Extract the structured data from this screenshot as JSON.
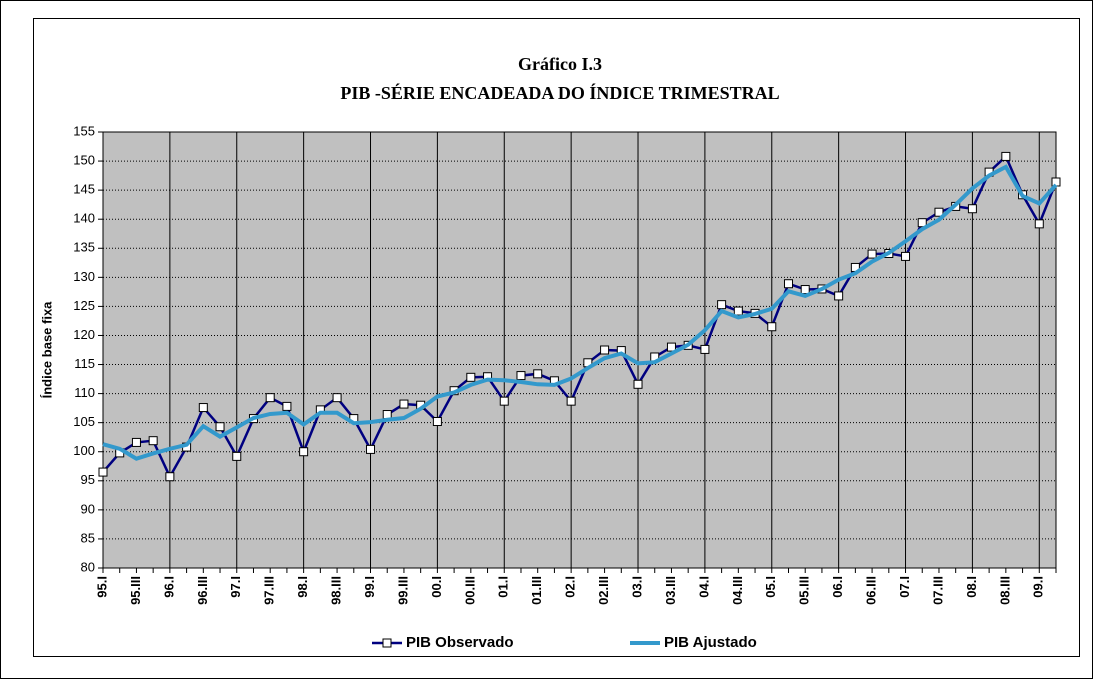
{
  "chart_data": {
    "type": "line",
    "title": "Gráfico I.3",
    "subtitle": "PIB -SÉRIE ENCADEADA DO ÍNDICE TRIMESTRAL",
    "y_label": "Índice base fixa",
    "categories": [
      "95.I",
      null,
      "95.III",
      null,
      "96.I",
      null,
      "96.III",
      null,
      "97.I",
      null,
      "97.III",
      null,
      "98.I",
      null,
      "98.III",
      null,
      "99.I",
      null,
      "99.III",
      null,
      "00.I",
      null,
      "00.III",
      null,
      "01.I",
      null,
      "01.III",
      null,
      "02.I",
      null,
      "02.III",
      null,
      "03.I",
      null,
      "03.III",
      null,
      "04.I",
      null,
      "04.III",
      null,
      "05.I",
      null,
      "05.III",
      null,
      "06.I",
      null,
      "06.III",
      null,
      "07.I",
      null,
      "07.III",
      null,
      "08.I",
      null,
      "08.III",
      null,
      "09.I",
      null
    ],
    "series": [
      {
        "name": "PIB Observado",
        "color": "#000080",
        "marker": "square",
        "values": [
          96.5,
          99.8,
          101.6,
          101.9,
          95.7,
          100.8,
          107.6,
          104.3,
          99.2,
          105.7,
          109.3,
          107.8,
          100.0,
          107.2,
          109.3,
          105.7,
          100.4,
          106.4,
          108.2,
          108.0,
          105.2,
          110.5,
          112.8,
          112.9,
          108.7,
          113.1,
          113.4,
          112.2,
          108.7,
          115.3,
          117.5,
          117.4,
          111.6,
          116.3,
          118.0,
          118.3,
          117.6,
          125.3,
          124.2,
          123.8,
          121.5,
          128.9,
          127.9,
          128.0,
          126.8,
          131.7,
          134.0,
          134.1,
          133.6,
          139.4,
          141.2,
          142.2,
          141.8,
          148.1,
          150.8,
          144.2,
          139.2,
          146.4
        ]
      },
      {
        "name": "PIB Ajustado",
        "color": "#3399cc",
        "marker": "none",
        "values": [
          101.3,
          100.5,
          98.8,
          99.7,
          100.5,
          101.2,
          104.4,
          102.6,
          104.2,
          105.8,
          106.5,
          106.7,
          104.7,
          106.7,
          106.7,
          104.9,
          105.1,
          105.5,
          105.8,
          107.4,
          109.5,
          110.2,
          111.5,
          112.4,
          112.3,
          112.0,
          111.6,
          111.5,
          112.6,
          114.4,
          116.1,
          116.9,
          115.2,
          115.4,
          116.9,
          118.4,
          120.9,
          124.2,
          123.1,
          123.7,
          124.6,
          127.6,
          126.8,
          128.0,
          129.6,
          130.7,
          132.7,
          134.2,
          136.2,
          138.3,
          139.9,
          142.5,
          145.3,
          147.5,
          149.0,
          144.0,
          142.7,
          145.9
        ]
      }
    ],
    "ylim": [
      80,
      155
    ],
    "yticks": [
      80,
      85,
      90,
      95,
      100,
      105,
      110,
      115,
      120,
      125,
      130,
      135,
      140,
      145,
      150,
      155
    ],
    "grid": true,
    "plot_background": "#c0c0c0",
    "legend": "bottom"
  }
}
